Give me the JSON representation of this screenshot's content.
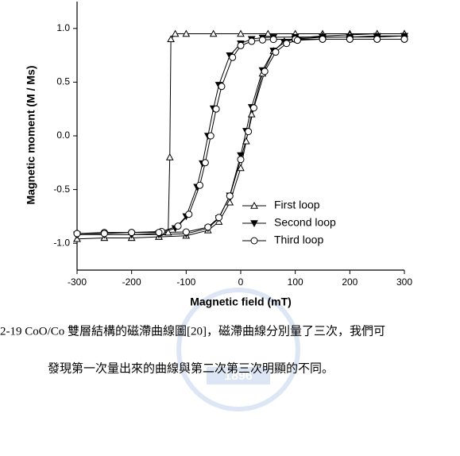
{
  "chart_data": {
    "type": "line",
    "x_label": "Magnetic field (mT)",
    "y_label": "Magnetic moment (M / Ms)",
    "xlim": [
      -300,
      300
    ],
    "xticks": [
      -300,
      -200,
      -100,
      0,
      100,
      200,
      300
    ],
    "ylim": [
      -1.25,
      1.25
    ],
    "yticks": [
      {
        "value": -1,
        "label": "-1.0"
      },
      -0.5,
      {
        "value": 0,
        "label": "0.0"
      },
      0.5,
      {
        "value": 1,
        "label": "1.0"
      }
    ],
    "legend": "lower right",
    "series": [
      {
        "name": "First loop",
        "color": "#000000",
        "marker": "open-triangle",
        "x": [
          300,
          250,
          200,
          150,
          100,
          50,
          0,
          -50,
          -100,
          -120,
          -128,
          -130,
          -133,
          -150,
          -200,
          -250,
          -300,
          -300,
          -250,
          -200,
          -150,
          -100,
          -60,
          -40,
          -20,
          0,
          10,
          20,
          40,
          60,
          80,
          100,
          150,
          200,
          250,
          300
        ],
        "values": [
          0.95,
          0.95,
          0.95,
          0.95,
          0.95,
          0.95,
          0.95,
          0.95,
          0.95,
          0.95,
          0.9,
          -0.2,
          -0.9,
          -0.94,
          -0.95,
          -0.95,
          -0.96,
          -0.96,
          -0.95,
          -0.95,
          -0.94,
          -0.93,
          -0.88,
          -0.8,
          -0.62,
          -0.3,
          -0.05,
          0.2,
          0.58,
          0.79,
          0.88,
          0.91,
          0.93,
          0.94,
          0.95,
          0.95
        ]
      },
      {
        "name": "Second loop",
        "color": "#000000",
        "marker": "filled-triangle-down",
        "x": [
          300,
          250,
          200,
          150,
          100,
          60,
          40,
          20,
          0,
          -20,
          -40,
          -50,
          -60,
          -70,
          -80,
          -100,
          -120,
          -150,
          -200,
          -250,
          -300,
          -300,
          -250,
          -200,
          -150,
          -100,
          -60,
          -40,
          -20,
          0,
          10,
          20,
          40,
          60,
          80,
          100,
          150,
          200,
          250,
          300
        ],
        "values": [
          0.93,
          0.93,
          0.92,
          0.92,
          0.92,
          0.918,
          0.914,
          0.901,
          0.86,
          0.749,
          0.475,
          0.256,
          0,
          -0.256,
          -0.475,
          -0.749,
          -0.86,
          -0.909,
          -0.92,
          -0.92,
          -0.92,
          -0.92,
          -0.92,
          -0.92,
          -0.919,
          -0.912,
          -0.86,
          -0.767,
          -0.556,
          -0.181,
          0.046,
          0.268,
          0.611,
          0.793,
          0.871,
          0.902,
          0.918,
          0.92,
          0.92,
          0.93
        ]
      },
      {
        "name": "Third loop",
        "color": "#000000",
        "marker": "open-circle",
        "x": [
          300,
          250,
          200,
          150,
          100,
          60,
          40,
          20,
          0,
          -15,
          -35,
          -45,
          -55,
          -65,
          -75,
          -95,
          -115,
          -145,
          -200,
          -250,
          -300,
          -300,
          -250,
          -200,
          -150,
          -100,
          -60,
          -40,
          -20,
          0,
          14,
          24,
          44,
          64,
          84,
          104,
          150,
          200,
          250,
          300
        ],
        "values": [
          0.9,
          0.9,
          0.9,
          0.9,
          0.9,
          0.898,
          0.893,
          0.88,
          0.84,
          0.73,
          0.46,
          0.25,
          0,
          -0.25,
          -0.46,
          -0.73,
          -0.84,
          -0.89,
          -0.9,
          -0.9,
          -0.91,
          -0.91,
          -0.91,
          -0.9,
          -0.9,
          -0.895,
          -0.85,
          -0.76,
          -0.56,
          -0.22,
          0.04,
          0.26,
          0.6,
          0.78,
          0.86,
          0.89,
          0.9,
          0.9,
          0.9,
          0.9
        ]
      }
    ]
  },
  "caption": {
    "line1": "2-19 CoO/Co 雙層結構的磁滯曲線圖[20]，磁滯曲線分別量了三次，我們可",
    "line2": "發現第一次量出來的曲線與第二次第三次明顯的不同。"
  },
  "watermark": {
    "year": "1896"
  }
}
